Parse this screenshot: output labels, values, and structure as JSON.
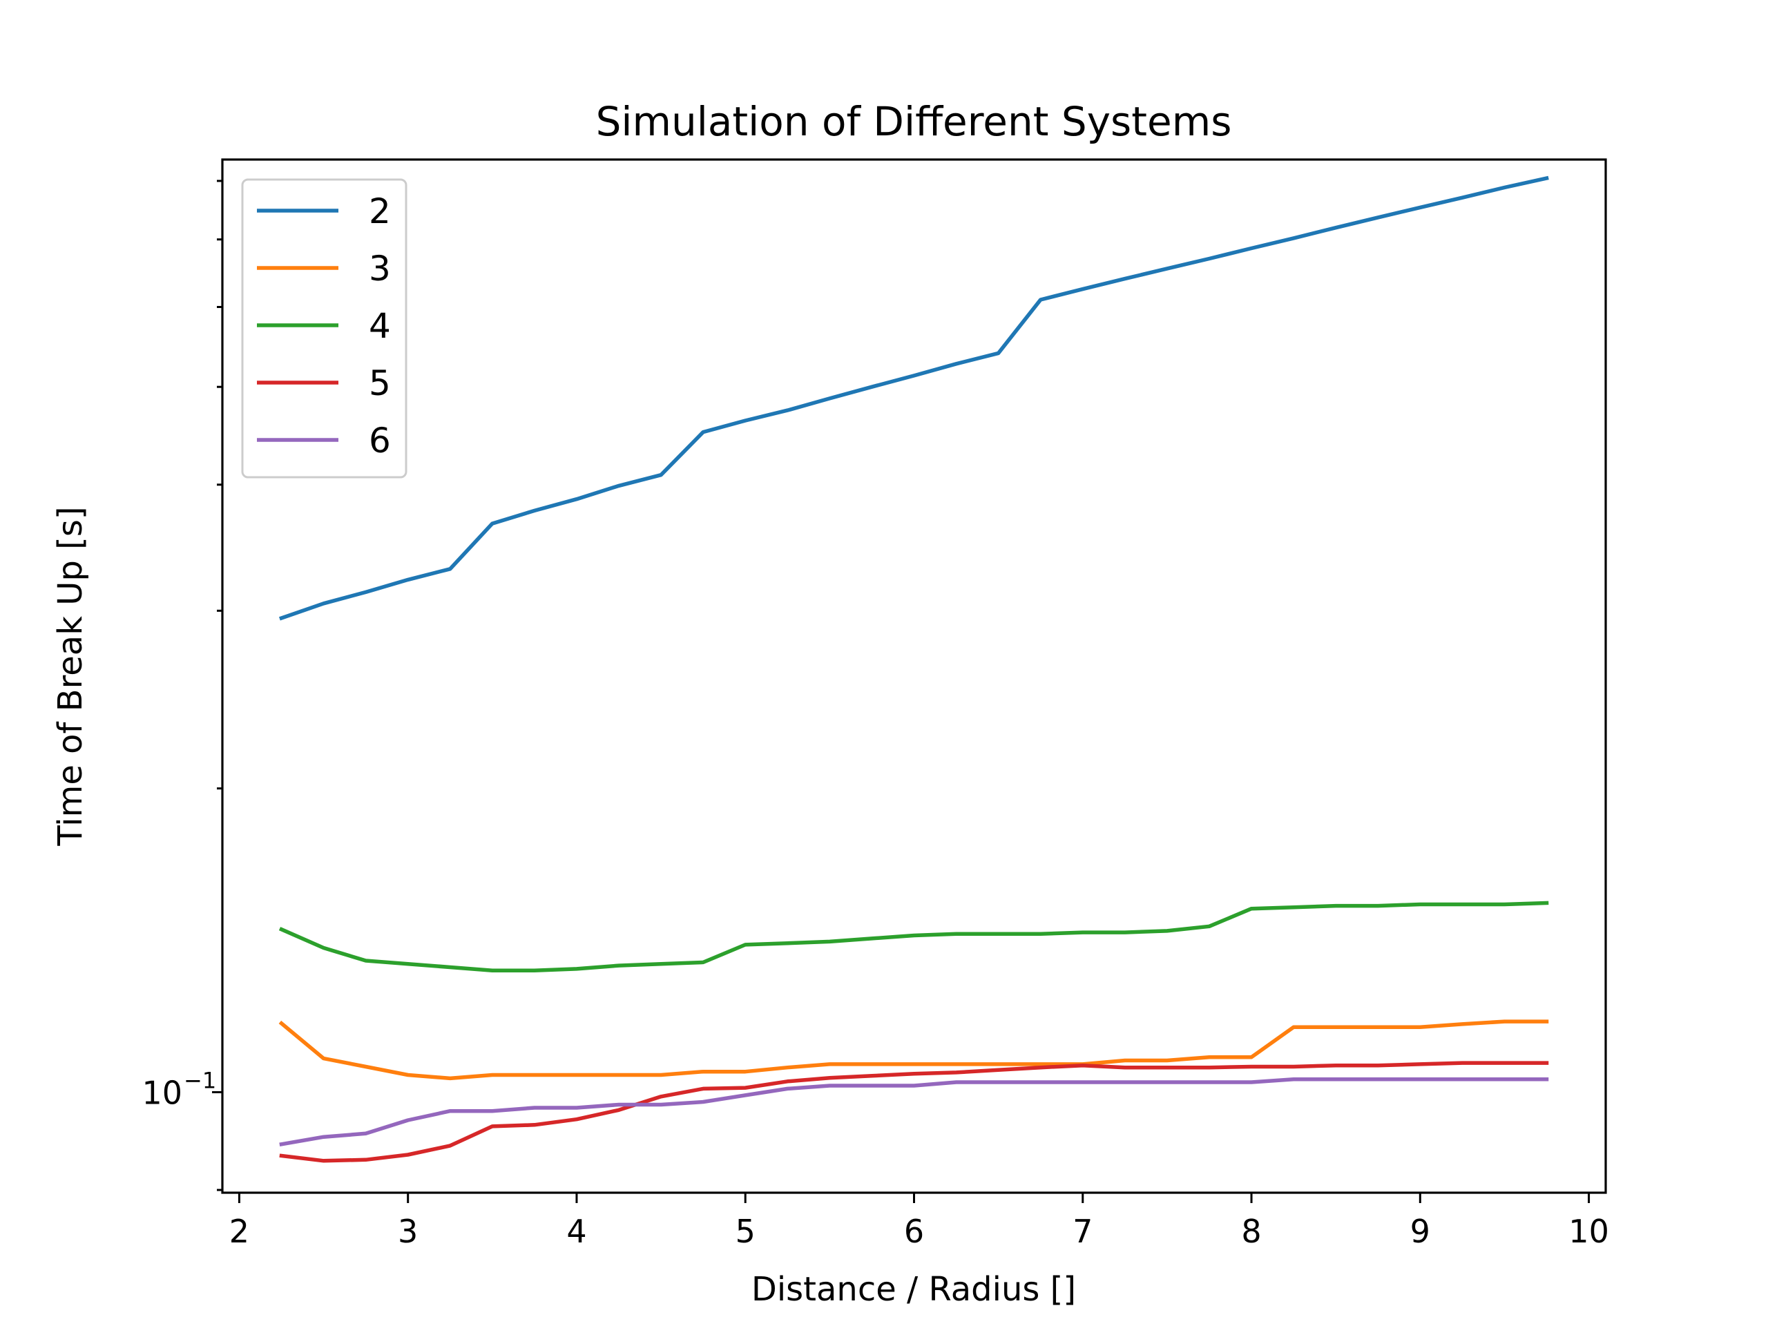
{
  "chart_data": {
    "type": "line",
    "title": "Simulation of Different Systems",
    "xlabel": "Distance / Radius []",
    "ylabel": "Time of Break Up [s]",
    "xscale": "linear",
    "yscale": "log",
    "xlim": [
      1.9,
      10.1
    ],
    "ylim": [
      0.0795,
      0.84
    ],
    "xticks": [
      2,
      3,
      4,
      5,
      6,
      7,
      8,
      9,
      10
    ],
    "xtick_labels": [
      "2",
      "3",
      "4",
      "5",
      "6",
      "7",
      "8",
      "9",
      "10"
    ],
    "yticks_major": [
      0.1
    ],
    "ytick_major_labels": [
      "10"
    ],
    "ytick_major_exponent": "−1",
    "yticks_minor": [
      0.08,
      0.2,
      0.3,
      0.4,
      0.5,
      0.6,
      0.7,
      0.8
    ],
    "grid": false,
    "legend": "top-left",
    "x": [
      2.25,
      2.5,
      2.75,
      3.0,
      3.25,
      3.5,
      3.75,
      4.0,
      4.25,
      4.5,
      4.75,
      5.0,
      5.25,
      5.5,
      5.75,
      6.0,
      6.25,
      6.5,
      6.75,
      7.0,
      7.25,
      7.5,
      7.75,
      8.0,
      8.25,
      8.5,
      8.75,
      9.0,
      9.25,
      9.5,
      9.75
    ],
    "series": [
      {
        "name": "2",
        "color": "#1f77b4",
        "values": [
          0.295,
          0.305,
          0.313,
          0.322,
          0.33,
          0.366,
          0.377,
          0.387,
          0.399,
          0.409,
          0.451,
          0.463,
          0.474,
          0.487,
          0.5,
          0.513,
          0.527,
          0.54,
          0.61,
          0.625,
          0.64,
          0.655,
          0.67,
          0.686,
          0.702,
          0.719,
          0.736,
          0.753,
          0.77,
          0.788,
          0.805
        ]
      },
      {
        "name": "3",
        "color": "#ff7f0e",
        "values": [
          0.117,
          0.108,
          0.106,
          0.104,
          0.1032,
          0.104,
          0.104,
          0.104,
          0.104,
          0.104,
          0.1048,
          0.1048,
          0.1058,
          0.1066,
          0.1066,
          0.1066,
          0.1066,
          0.1066,
          0.1066,
          0.1066,
          0.1075,
          0.1075,
          0.1083,
          0.1083,
          0.116,
          0.116,
          0.116,
          0.116,
          0.1168,
          0.1175,
          0.1175
        ]
      },
      {
        "name": "4",
        "color": "#2ca02c",
        "values": [
          0.145,
          0.139,
          0.135,
          0.134,
          0.133,
          0.132,
          0.132,
          0.1325,
          0.1335,
          0.134,
          0.1345,
          0.14,
          0.1405,
          0.141,
          0.142,
          0.143,
          0.1435,
          0.1435,
          0.1435,
          0.144,
          0.144,
          0.1445,
          0.146,
          0.152,
          0.1525,
          0.153,
          0.153,
          0.1535,
          0.1535,
          0.1535,
          0.154
        ]
      },
      {
        "name": "5",
        "color": "#d62728",
        "values": [
          0.0865,
          0.0855,
          0.0857,
          0.0867,
          0.0885,
          0.0925,
          0.0928,
          0.094,
          0.096,
          0.099,
          0.1008,
          0.101,
          0.1025,
          0.1033,
          0.1038,
          0.1043,
          0.1046,
          0.1052,
          0.1058,
          0.1063,
          0.1058,
          0.1058,
          0.1058,
          0.106,
          0.106,
          0.1063,
          0.1063,
          0.1066,
          0.1069,
          0.1069,
          0.1069
        ]
      },
      {
        "name": "6",
        "color": "#9467bd",
        "values": [
          0.0888,
          0.0903,
          0.091,
          0.0938,
          0.0958,
          0.0958,
          0.0965,
          0.0965,
          0.0972,
          0.0972,
          0.0978,
          0.0993,
          0.1008,
          0.1015,
          0.1015,
          0.1015,
          0.1023,
          0.1023,
          0.1023,
          0.1023,
          0.1023,
          0.1023,
          0.1023,
          0.1023,
          0.103,
          0.103,
          0.103,
          0.103,
          0.103,
          0.103,
          0.103
        ]
      }
    ]
  }
}
